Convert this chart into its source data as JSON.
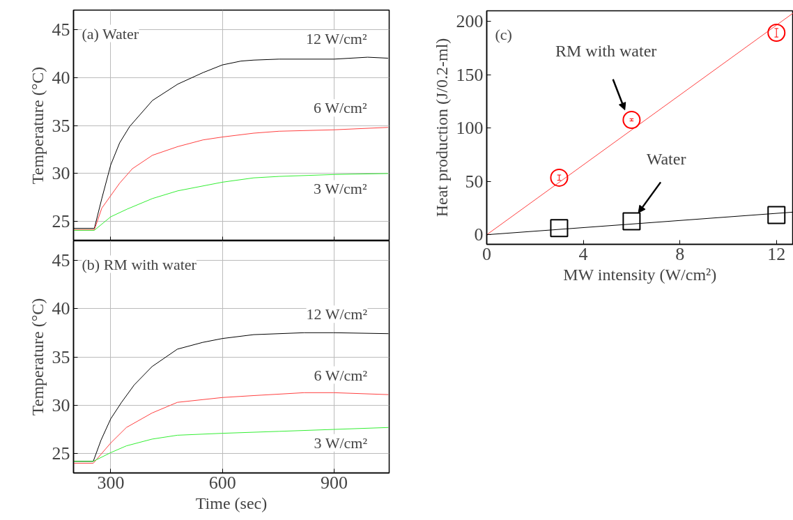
{
  "chart_data": [
    {
      "type": "line",
      "title": "(a) Water",
      "ylabel": "Temperature (°C)",
      "xlim": [
        200,
        1048
      ],
      "ylim": [
        23,
        47
      ],
      "xticks": [
        300,
        600,
        900
      ],
      "yticks": [
        25,
        30,
        35,
        40,
        45
      ],
      "tick_labels": "y",
      "grid": true,
      "line_style": "solid",
      "marker": "none",
      "series": [
        {
          "name": "12 W/cm²",
          "color": "#000000",
          "x": [
            200,
            256,
            276,
            300,
            324,
            351,
            412,
            480,
            548,
            600,
            650,
            684,
            752,
            900,
            990,
            1045
          ],
          "values": [
            24.3,
            24.3,
            27.4,
            30.9,
            33.2,
            34.9,
            37.6,
            39.3,
            40.5,
            41.3,
            41.7,
            41.8,
            41.9,
            41.9,
            42.1,
            42.0
          ]
        },
        {
          "name": "6 W/cm²",
          "color": "#ff4040",
          "x": [
            200,
            256,
            276,
            300,
            324,
            358,
            412,
            480,
            548,
            600,
            684,
            752,
            900,
            1045
          ],
          "values": [
            24.15,
            24.15,
            26.4,
            27.7,
            29.0,
            30.5,
            31.9,
            32.8,
            33.5,
            33.8,
            34.2,
            34.4,
            34.55,
            34.8
          ]
        },
        {
          "name": "3 W/cm²",
          "color": "#33ee33",
          "x": [
            200,
            256,
            300,
            344,
            412,
            480,
            600,
            684,
            752,
            900,
            1045
          ],
          "values": [
            24.1,
            24.1,
            25.5,
            26.3,
            27.4,
            28.2,
            29.1,
            29.55,
            29.7,
            29.9,
            30.0
          ]
        }
      ]
    },
    {
      "type": "line",
      "title": "(b) RM with water",
      "xlabel": "Time (sec)",
      "ylabel": "Temperature (°C)",
      "xlim": [
        200,
        1048
      ],
      "ylim": [
        23,
        47
      ],
      "xticks": [
        300,
        600,
        900
      ],
      "yticks": [
        25,
        30,
        35,
        40,
        45
      ],
      "grid": true,
      "line_style": "solid",
      "marker": "none",
      "series": [
        {
          "name": "12 W/cm²",
          "color": "#000000",
          "x": [
            200,
            253,
            274,
            300,
            329,
            363,
            411,
            479,
            547,
            600,
            684,
            820,
            898,
            1046
          ],
          "values": [
            24.2,
            24.2,
            26.4,
            28.6,
            30.3,
            32.1,
            34.0,
            35.8,
            36.5,
            36.9,
            37.3,
            37.5,
            37.5,
            37.4
          ]
        },
        {
          "name": "6 W/cm²",
          "color": "#ff4040",
          "x": [
            200,
            253,
            300,
            342,
            411,
            479,
            600,
            684,
            820,
            898,
            1046
          ],
          "values": [
            24.0,
            24.0,
            26.1,
            27.7,
            29.2,
            30.3,
            30.8,
            31.0,
            31.3,
            31.3,
            31.1
          ]
        },
        {
          "name": "3 W/cm²",
          "color": "#33ee33",
          "x": [
            200,
            253,
            300,
            342,
            411,
            479,
            600,
            752,
            898,
            1046
          ],
          "values": [
            24.2,
            24.2,
            25.1,
            25.8,
            26.5,
            26.9,
            27.1,
            27.3,
            27.5,
            27.7
          ]
        }
      ]
    },
    {
      "type": "scatter",
      "title": "(c)",
      "xlabel": "MW intensity (W/cm²)",
      "ylabel": "Heat production (J/0.2-ml)",
      "xlim": [
        0,
        12.7
      ],
      "ylim": [
        -9,
        210
      ],
      "xticks": [
        0,
        4,
        8,
        12
      ],
      "yticks": [
        0,
        50,
        100,
        150,
        200
      ],
      "annotations": [
        {
          "text": "RM with water",
          "x": 5.72,
          "y": 117
        },
        {
          "text": "Water",
          "x": 6.28,
          "y": 20.5
        }
      ],
      "series": [
        {
          "type": "line",
          "color": "#ff4040",
          "x": [
            0,
            12.7
          ],
          "values": [
            0,
            208
          ]
        },
        {
          "type": "line",
          "color": "#000000",
          "x": [
            0,
            12.7
          ],
          "values": [
            0,
            21.2
          ]
        },
        {
          "color": "#ff0000",
          "marker": "circle",
          "x": [
            3,
            6,
            12
          ],
          "values": [
            53.5,
            107.7,
            189.4
          ],
          "errors": [
            2.5,
            1,
            4
          ]
        },
        {
          "color": "#000000",
          "marker": "square",
          "x": [
            3,
            6,
            12
          ],
          "values": [
            6.2,
            12.5,
            18.5
          ]
        }
      ]
    }
  ]
}
